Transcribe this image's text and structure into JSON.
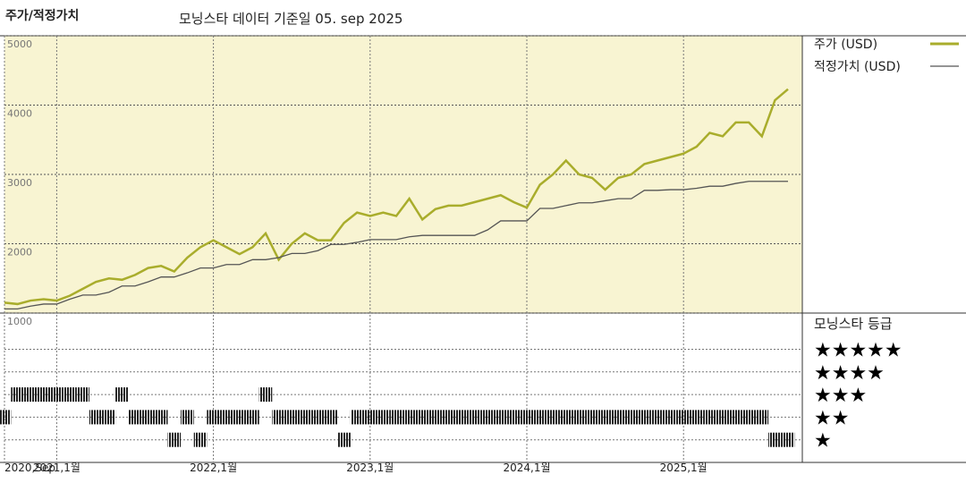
{
  "chart_data": [
    {
      "type": "line",
      "title": "주가/적정가치",
      "subtitle": "모닝스타 데이터 기준일 05. sep 2025",
      "x": [
        "2020-09",
        "2020-10",
        "2020-11",
        "2020-12",
        "2021-01",
        "2021-02",
        "2021-03",
        "2021-04",
        "2021-05",
        "2021-06",
        "2021-07",
        "2021-08",
        "2021-09",
        "2021-10",
        "2021-11",
        "2021-12",
        "2022-01",
        "2022-02",
        "2022-03",
        "2022-04",
        "2022-05",
        "2022-06",
        "2022-07",
        "2022-08",
        "2022-09",
        "2022-10",
        "2022-11",
        "2022-12",
        "2023-01",
        "2023-02",
        "2023-03",
        "2023-04",
        "2023-05",
        "2023-06",
        "2023-07",
        "2023-08",
        "2023-09",
        "2023-10",
        "2023-11",
        "2023-12",
        "2024-01",
        "2024-02",
        "2024-03",
        "2024-04",
        "2024-05",
        "2024-06",
        "2024-07",
        "2024-08",
        "2024-09",
        "2024-10",
        "2024-11",
        "2024-12",
        "2025-01",
        "2025-02",
        "2025-03",
        "2025-04",
        "2025-05",
        "2025-06",
        "2025-07",
        "2025-08",
        "2025-09"
      ],
      "xticks": [
        {
          "value": "2020-09",
          "label": "2020,Sep"
        },
        {
          "value": "2021-01",
          "label": "2021,1월"
        },
        {
          "value": "2022-01",
          "label": "2022,1월"
        },
        {
          "value": "2023-01",
          "label": "2023,1월"
        },
        {
          "value": "2024-01",
          "label": "2024,1월"
        },
        {
          "value": "2025-01",
          "label": "2025,1월"
        }
      ],
      "ylim": [
        1000,
        5000
      ],
      "yticks": [
        1000,
        2000,
        3000,
        4000,
        5000
      ],
      "grid": true,
      "series": [
        {
          "name": "주가 (USD)",
          "color": "#a9ad2c",
          "values": [
            1150,
            1130,
            1180,
            1200,
            1180,
            1250,
            1350,
            1450,
            1500,
            1480,
            1550,
            1650,
            1680,
            1600,
            1800,
            1950,
            2050,
            1950,
            1850,
            1950,
            2150,
            1770,
            2000,
            2150,
            2050,
            2050,
            2300,
            2450,
            2400,
            2450,
            2400,
            2650,
            2350,
            2500,
            2550,
            2550,
            2600,
            2650,
            2700,
            2600,
            2520,
            2850,
            3000,
            3200,
            3000,
            2950,
            2780,
            2950,
            3000,
            3150,
            3200,
            3250,
            3300,
            3400,
            3600,
            3550,
            3750,
            3750,
            3550,
            4070,
            4230
          ]
        },
        {
          "name": "적정가치 (USD)",
          "color": "#555555",
          "values": [
            1060,
            1060,
            1100,
            1130,
            1130,
            1200,
            1260,
            1260,
            1300,
            1390,
            1390,
            1450,
            1520,
            1520,
            1580,
            1650,
            1650,
            1700,
            1700,
            1770,
            1770,
            1800,
            1860,
            1860,
            1900,
            1990,
            1990,
            2020,
            2060,
            2060,
            2060,
            2100,
            2120,
            2120,
            2120,
            2120,
            2120,
            2200,
            2330,
            2330,
            2330,
            2510,
            2510,
            2550,
            2590,
            2590,
            2620,
            2650,
            2650,
            2770,
            2770,
            2780,
            2780,
            2800,
            2830,
            2830,
            2870,
            2900,
            2900,
            2900,
            2900
          ]
        }
      ]
    },
    {
      "type": "rating",
      "title": "모닝스타 등급",
      "ylim": [
        0,
        6.6
      ],
      "yticks": [
        {
          "value": 5,
          "label": "★★★★★"
        },
        {
          "value": 4,
          "label": "★★★★"
        },
        {
          "value": 3,
          "label": "★★★"
        },
        {
          "value": 2,
          "label": "★★"
        },
        {
          "value": 1,
          "label": "★"
        }
      ],
      "color": "#222222",
      "values": [
        2,
        3,
        3,
        3,
        3,
        3,
        3,
        2,
        2,
        3,
        2,
        2,
        2,
        1,
        2,
        1,
        2,
        2,
        2,
        2,
        3,
        2,
        2,
        2,
        2,
        2,
        1,
        2,
        2,
        2,
        2,
        2,
        2,
        2,
        2,
        2,
        2,
        2,
        2,
        2,
        2,
        2,
        2,
        2,
        2,
        2,
        2,
        2,
        2,
        2,
        2,
        2,
        2,
        2,
        2,
        2,
        2,
        2,
        2,
        1,
        1
      ]
    }
  ]
}
